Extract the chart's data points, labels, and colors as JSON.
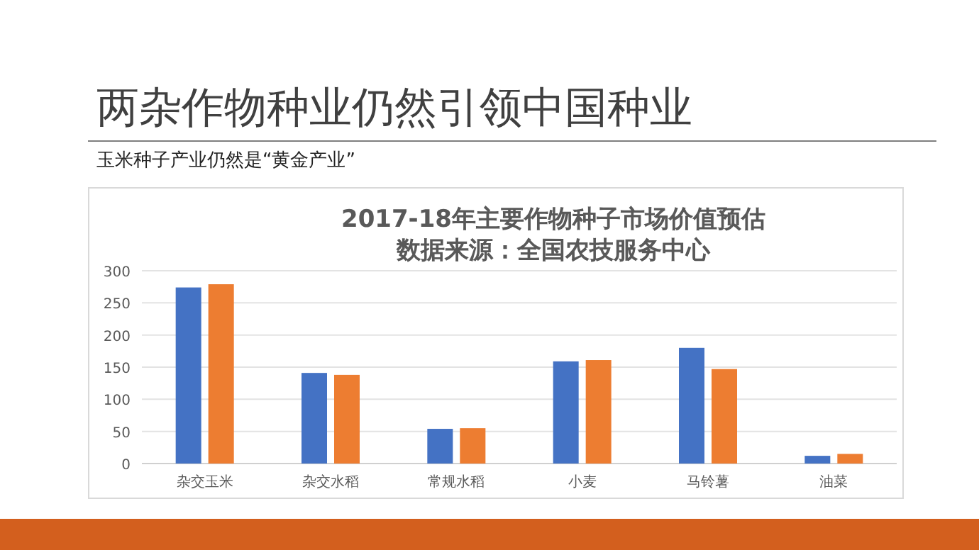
{
  "chart_data": {
    "type": "bar",
    "title": "2017-18年主要作物种子市场价值预估",
    "subtitle": "数据来源：全国农技服务中心",
    "annotations": [
      "两杂作物种业仍然引领中国种业",
      "玉米种子产业仍然是“黄金产业”"
    ],
    "categories": [
      "杂交玉米",
      "杂交水稻",
      "常规水稻",
      "小麦",
      "马铃薯",
      "油菜"
    ],
    "series": [
      {
        "color": "#4472c4",
        "values": [
          274,
          141,
          54,
          159,
          180,
          12
        ]
      },
      {
        "color": "#ed7d31",
        "values": [
          279,
          138,
          55,
          161,
          147,
          15
        ]
      }
    ],
    "ylim": [
      0,
      300
    ],
    "yticks": [
      0,
      50,
      100,
      150,
      200,
      250,
      300
    ],
    "grid": "y"
  }
}
